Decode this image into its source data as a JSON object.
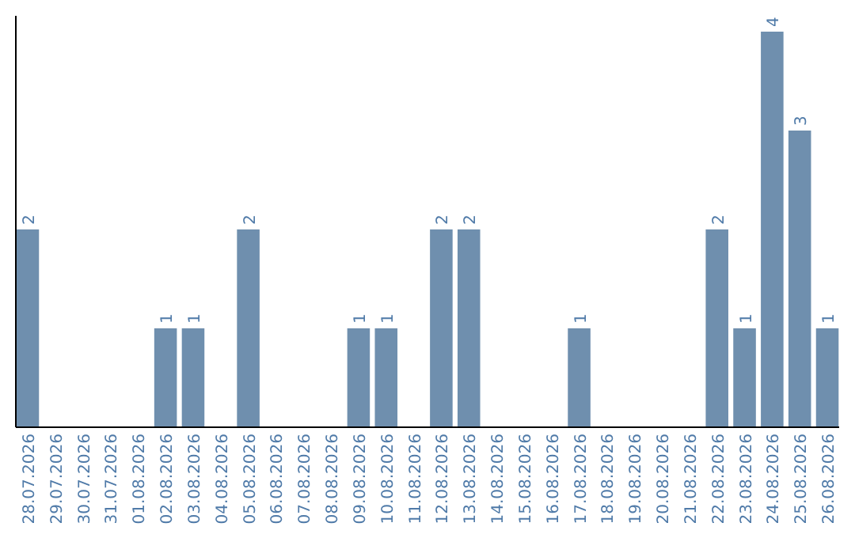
{
  "chart_data": {
    "type": "bar",
    "categories": [
      "28.07.2026",
      "29.07.2026",
      "30.07.2026",
      "31.07.2026",
      "01.08.2026",
      "02.08.2026",
      "03.08.2026",
      "04.08.2026",
      "05.08.2026",
      "06.08.2026",
      "07.08.2026",
      "08.08.2026",
      "09.08.2026",
      "10.08.2026",
      "11.08.2026",
      "12.08.2026",
      "13.08.2026",
      "14.08.2026",
      "15.08.2026",
      "16.08.2026",
      "17.08.2026",
      "18.08.2026",
      "19.08.2026",
      "20.08.2026",
      "21.08.2026",
      "22.08.2026",
      "23.08.2026",
      "24.08.2026",
      "25.08.2026",
      "26.08.2026"
    ],
    "values": [
      2,
      0,
      0,
      0,
      0,
      1,
      1,
      0,
      2,
      0,
      0,
      0,
      1,
      1,
      0,
      2,
      2,
      0,
      0,
      0,
      1,
      0,
      0,
      0,
      0,
      2,
      1,
      4,
      3,
      1
    ],
    "value_labels": [
      "2",
      null,
      null,
      null,
      null,
      "1",
      "1",
      null,
      "2",
      null,
      null,
      null,
      "1",
      "1",
      null,
      "2",
      "2",
      null,
      null,
      null,
      "1",
      null,
      null,
      null,
      null,
      "2",
      "1",
      "4",
      "3",
      "1"
    ],
    "color": "#6f8fae"
  }
}
